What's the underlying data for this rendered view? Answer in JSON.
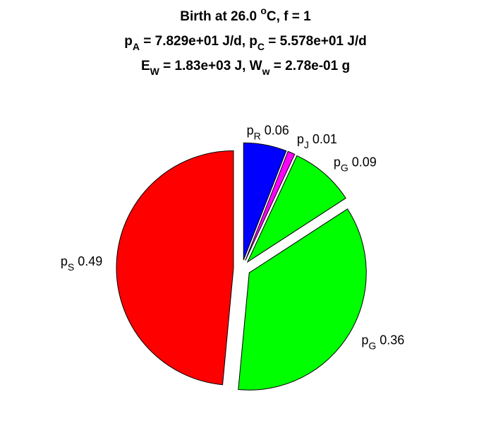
{
  "chart_data": {
    "type": "pie",
    "title": [
      [
        {
          "text": "Birth at 26.0 "
        },
        {
          "text": "o",
          "script": "super"
        },
        {
          "text": "C, f = 1"
        }
      ],
      [
        {
          "text": "p"
        },
        {
          "text": "A",
          "script": "sub"
        },
        {
          "text": " = 7.829e+01 J/d, p"
        },
        {
          "text": "C",
          "script": "sub"
        },
        {
          "text": " = 5.578e+01 J/d"
        }
      ],
      [
        {
          "text": "E"
        },
        {
          "text": "W",
          "script": "sub"
        },
        {
          "text": " = 1.83e+03 J, W"
        },
        {
          "text": "w",
          "script": "sub"
        },
        {
          "text": " = 2.78e-01 g"
        }
      ]
    ],
    "labels": [
      [
        {
          "text": "p"
        },
        {
          "text": "R",
          "script": "sub"
        }
      ],
      [
        {
          "text": "p"
        },
        {
          "text": "J",
          "script": "sub"
        }
      ],
      [
        {
          "text": "p"
        },
        {
          "text": "G",
          "script": "sub"
        }
      ],
      [
        {
          "text": "p"
        },
        {
          "text": "G",
          "script": "sub"
        }
      ],
      [
        {
          "text": "p"
        },
        {
          "text": "S",
          "script": "sub"
        }
      ]
    ],
    "values": [
      0.06,
      0.01,
      0.09,
      0.36,
      0.49
    ],
    "colors": [
      "#0000ff",
      "#ff00ff",
      "#00ff00",
      "#00ff00",
      "#ff0000"
    ],
    "explode": true
  }
}
